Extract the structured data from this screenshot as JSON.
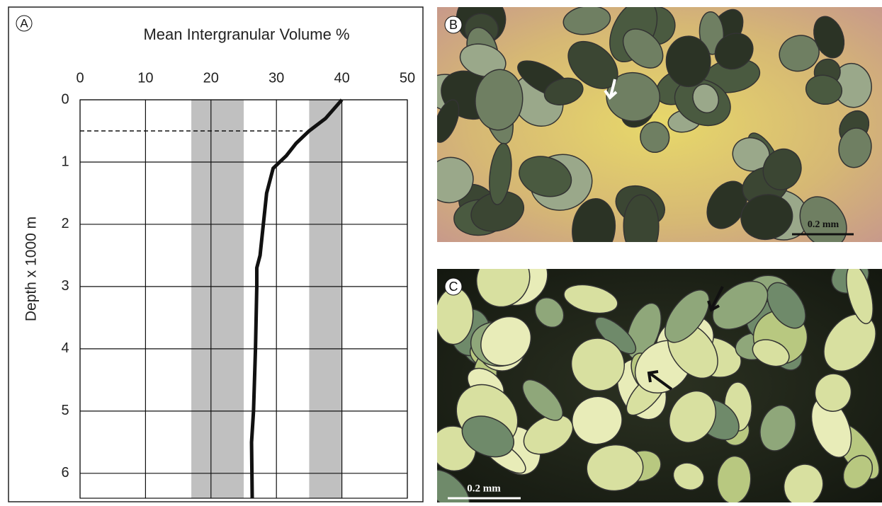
{
  "chart_data": {
    "type": "line",
    "panel_label": "A",
    "title": "Mean Intergranular Volume %",
    "y_label": "Depth x 1000 m",
    "x": [
      40,
      37.5,
      35,
      33,
      31.5,
      30.5,
      29.5,
      29,
      28.5,
      28,
      27.5,
      27,
      27,
      26.8,
      26.5,
      26.2,
      26.3
    ],
    "values": [
      0,
      0.3,
      0.5,
      0.7,
      0.9,
      1.0,
      1.1,
      1.3,
      1.5,
      2,
      2.5,
      2.7,
      3,
      4,
      5,
      5.5,
      6.4
    ],
    "color": "#111111",
    "xlim": [
      0,
      50
    ],
    "xticks": [
      0,
      10,
      20,
      30,
      40,
      50
    ],
    "ylim": [
      0,
      6.4
    ],
    "yticks": [
      0,
      1,
      2,
      3,
      4,
      5,
      6
    ],
    "y_inverted": true,
    "grid": true,
    "shaded_ranges": [
      {
        "from": 17,
        "to": 25
      },
      {
        "from": 35,
        "to": 40
      }
    ],
    "shade_color": "#c0c0c0",
    "reference_line": {
      "y": 0.5,
      "x_end": 34
    }
  },
  "panels": [
    {
      "label": "B",
      "scale_bar": "0.2 mm"
    },
    {
      "label": "C",
      "scale_bar": "0.2 mm"
    }
  ]
}
